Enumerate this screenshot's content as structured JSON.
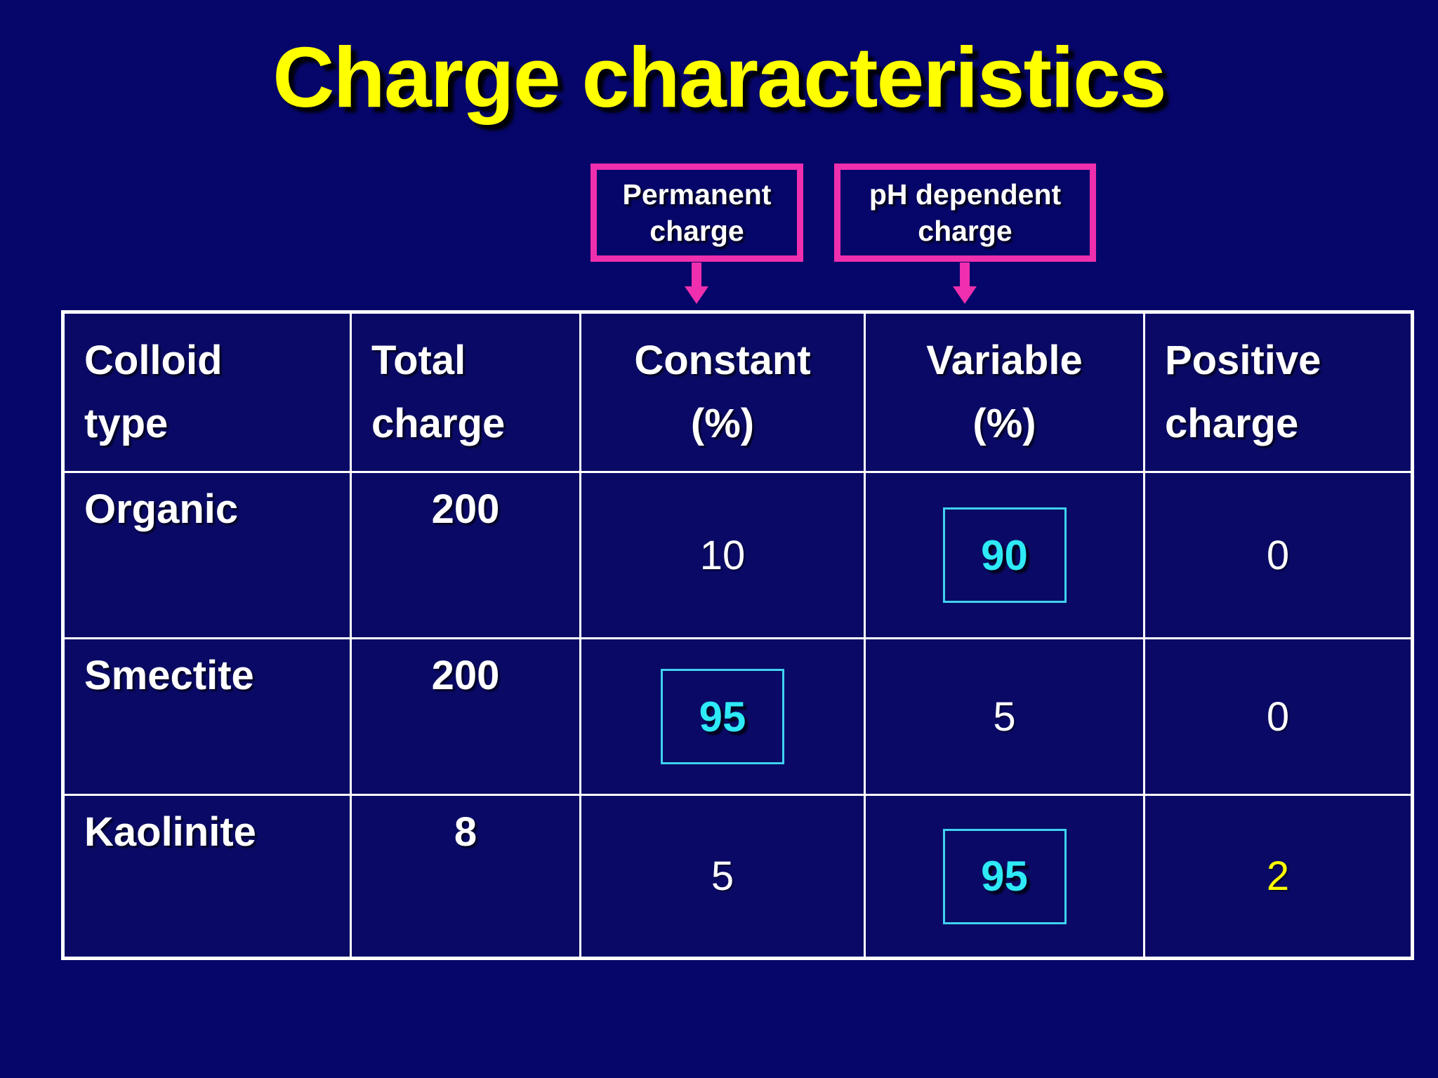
{
  "slide": {
    "title": "Charge characteristics"
  },
  "callouts": {
    "permanent": {
      "label": "Permanent\ncharge"
    },
    "ph_dependent": {
      "label": "pH dependent\ncharge"
    }
  },
  "table": {
    "headers": [
      "Colloid\ntype",
      "Total\ncharge",
      "Constant\n(%)",
      "Variable\n(%)",
      "Positive\ncharge"
    ],
    "rows": [
      {
        "colloid_type": "Organic",
        "total_charge": "200",
        "constant_pct": "10",
        "variable_pct": "90",
        "positive_charge": "0",
        "highlighted_cell": "variable_pct"
      },
      {
        "colloid_type": "Smectite",
        "total_charge": "200",
        "constant_pct": "95",
        "variable_pct": "5",
        "positive_charge": "0",
        "highlighted_cell": "constant_pct"
      },
      {
        "colloid_type": "Kaolinite",
        "total_charge": "8",
        "constant_pct": "5",
        "variable_pct": "95",
        "positive_charge": "2",
        "highlighted_cell": "variable_pct"
      }
    ]
  },
  "colors": {
    "background_navy": "#06066a",
    "title_yellow": "#ffff00",
    "callout_pink": "#ef2fae",
    "table_border_white": "#ffffff",
    "highlight_cyan_text": "#2ee9f6",
    "highlight_cyan_border": "#3fd2f0",
    "positive_charge_yellow": "#ffff00",
    "body_text_white": "#ffffff"
  }
}
